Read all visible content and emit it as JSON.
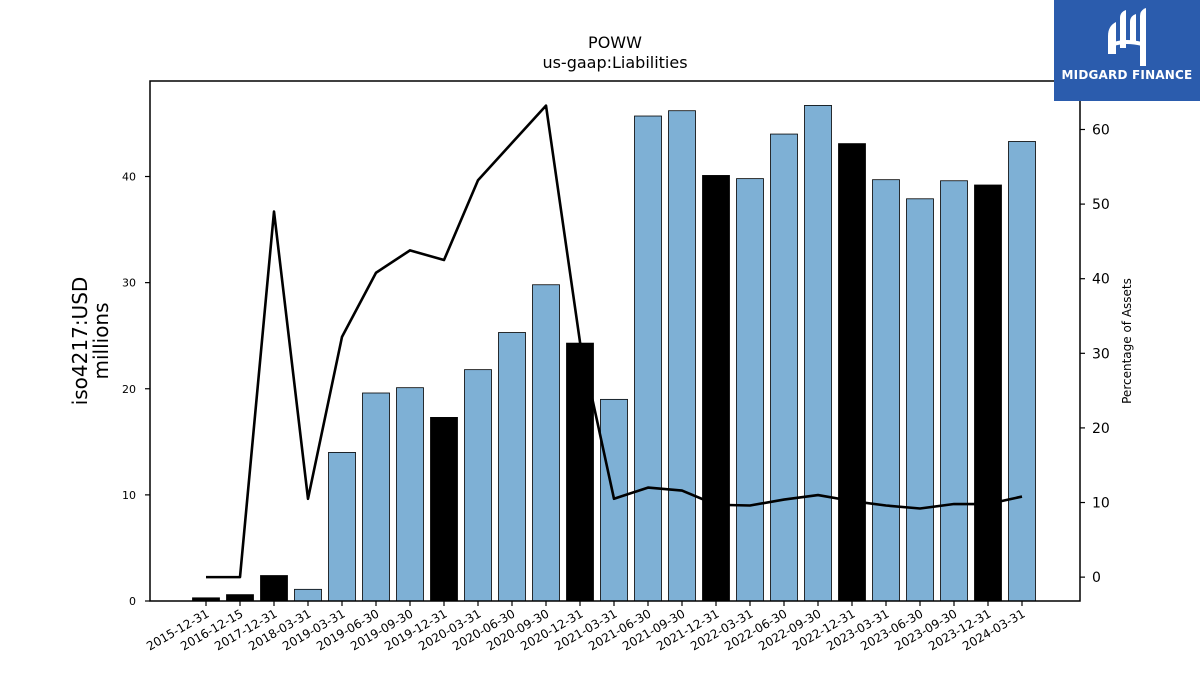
{
  "chart_data": {
    "type": "bar",
    "title": "POWW",
    "subtitle": "us-gaap:Liabilities",
    "ylabel_line1": "iso4217:USD",
    "ylabel_line2": "millions",
    "y2label": "Percentage of Assets",
    "ylim": [
      0,
      49
    ],
    "y2lim": [
      -3.2,
      66.5
    ],
    "yticks": [
      0,
      10,
      20,
      30,
      40
    ],
    "y2ticks": [
      0,
      10,
      20,
      30,
      40,
      50,
      60
    ],
    "categories": [
      "2015-12-31",
      "2016-12-15",
      "2017-12-31",
      "2018-03-31",
      "2019-03-31",
      "2019-06-30",
      "2019-09-30",
      "2019-12-31",
      "2020-03-31",
      "2020-06-30",
      "2020-09-30",
      "2020-12-31",
      "2021-03-31",
      "2021-06-30",
      "2021-09-30",
      "2021-12-31",
      "2022-03-31",
      "2022-06-30",
      "2022-09-30",
      "2022-12-31",
      "2023-03-31",
      "2023-06-30",
      "2023-09-30",
      "2023-12-31",
      "2024-03-31"
    ],
    "series": [
      {
        "type": "bar",
        "values": [
          0.3,
          0.6,
          2.4,
          1.1,
          14.0,
          19.6,
          20.1,
          17.3,
          21.8,
          25.3,
          29.8,
          24.3,
          19.0,
          45.7,
          46.2,
          40.1,
          39.8,
          44.0,
          46.7,
          43.1,
          39.7,
          37.9,
          39.6,
          39.2,
          43.3
        ],
        "annual": [
          true,
          true,
          true,
          false,
          false,
          false,
          false,
          true,
          false,
          false,
          false,
          true,
          false,
          false,
          false,
          true,
          false,
          false,
          false,
          true,
          false,
          false,
          false,
          true,
          false
        ]
      },
      {
        "type": "line",
        "axis": "right",
        "values": [
          0.0,
          0.0,
          49.0,
          10.5,
          32.2,
          40.8,
          43.8,
          42.5,
          53.2,
          58.2,
          63.2,
          31.5,
          10.5,
          12.0,
          11.6,
          9.7,
          9.6,
          10.4,
          11.0,
          10.2,
          9.6,
          9.2,
          9.8,
          9.8,
          10.8
        ]
      }
    ],
    "colors": {
      "bar_quarterly": "#7eb0d5",
      "bar_annual": "#000000",
      "line": "#000000"
    },
    "grid": false
  },
  "logo": {
    "text": "MIDGARD FINANCE",
    "bg": "#2b5cad"
  }
}
